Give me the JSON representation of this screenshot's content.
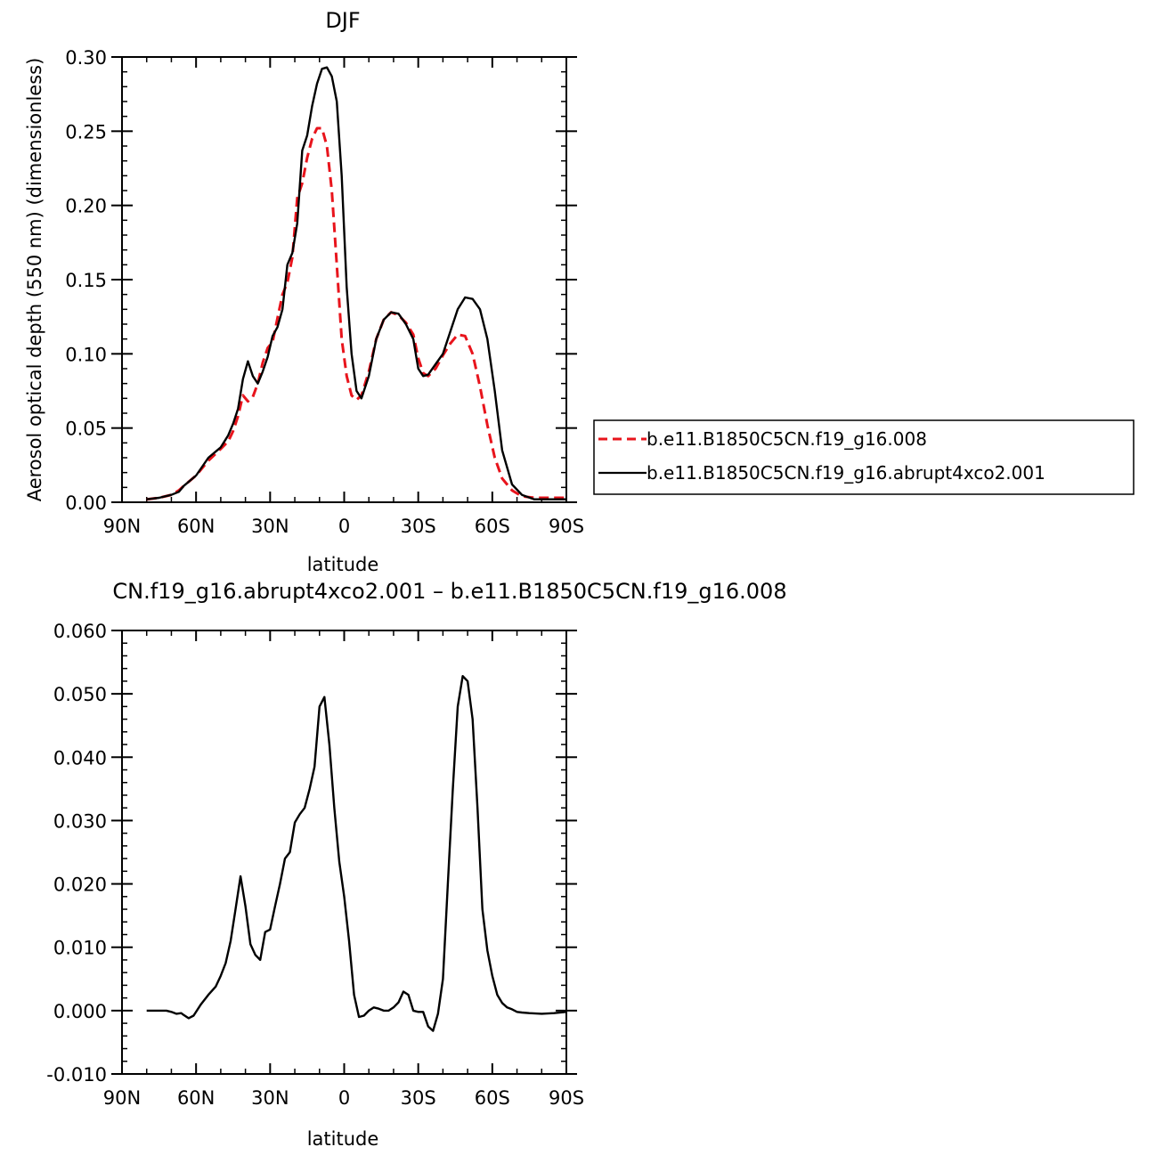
{
  "chart_data": [
    {
      "type": "line",
      "title": "DJF",
      "xlabel": "latitude",
      "ylabel": "Aerosol optical depth (550 nm) (dimensionless)",
      "xlim": [
        90,
        -90
      ],
      "ylim": [
        0,
        0.3
      ],
      "x_ticks": [
        90,
        60,
        30,
        0,
        -30,
        -60,
        -90
      ],
      "x_tick_labels": [
        "90N",
        "60N",
        "30N",
        "0",
        "30S",
        "60S",
        "90S"
      ],
      "y_ticks": [
        0,
        0.05,
        0.1,
        0.15,
        0.2,
        0.25,
        0.3
      ],
      "y_tick_labels": [
        "0.00",
        "0.05",
        "0.10",
        "0.15",
        "0.20",
        "0.25",
        "0.30"
      ],
      "legend_position": "right",
      "series": [
        {
          "name": "b.e11.B1850C5CN.f19_g16.008",
          "color": "#e8141c",
          "style": "dashed",
          "x": [
            80,
            75,
            70,
            67,
            65,
            60,
            55,
            50,
            47,
            45,
            43,
            41,
            39,
            37,
            35,
            33,
            31,
            29,
            27,
            25,
            23,
            21,
            19,
            17,
            15,
            13,
            11,
            9,
            7,
            5,
            3,
            1,
            -1,
            -3,
            -5,
            -7,
            -10,
            -13,
            -16,
            -19,
            -22,
            -25,
            -28,
            -30,
            -32,
            -34,
            -37,
            -40,
            -43,
            -46,
            -49,
            -52,
            -55,
            -58,
            -61,
            -64,
            -68,
            -72,
            -77,
            -82,
            -86,
            -90
          ],
          "y": [
            0.002,
            0.003,
            0.005,
            0.008,
            0.011,
            0.018,
            0.028,
            0.036,
            0.041,
            0.048,
            0.058,
            0.072,
            0.068,
            0.071,
            0.08,
            0.094,
            0.104,
            0.108,
            0.124,
            0.14,
            0.148,
            0.165,
            0.205,
            0.215,
            0.232,
            0.245,
            0.252,
            0.252,
            0.24,
            0.21,
            0.16,
            0.11,
            0.085,
            0.072,
            0.069,
            0.072,
            0.088,
            0.11,
            0.123,
            0.128,
            0.126,
            0.121,
            0.113,
            0.097,
            0.087,
            0.085,
            0.09,
            0.099,
            0.107,
            0.113,
            0.112,
            0.1,
            0.078,
            0.052,
            0.03,
            0.016,
            0.008,
            0.004,
            0.003,
            0.003,
            0.003,
            0.003
          ]
        },
        {
          "name": "b.e11.B1850C5CN.f19_g16.abrupt4xco2.001",
          "color": "#000000",
          "style": "solid",
          "x": [
            80,
            75,
            70,
            67,
            65,
            60,
            55,
            50,
            47,
            45,
            43,
            41,
            39,
            37,
            35,
            33,
            31,
            29,
            27,
            25,
            23,
            21,
            19,
            17,
            15,
            13,
            11,
            9,
            7,
            5,
            3,
            1,
            -1,
            -3,
            -5,
            -7,
            -10,
            -13,
            -16,
            -19,
            -22,
            -25,
            -28,
            -30,
            -32,
            -34,
            -37,
            -40,
            -43,
            -46,
            -49,
            -52,
            -55,
            -58,
            -61,
            -64,
            -68,
            -72,
            -77,
            -82,
            -86,
            -90
          ],
          "y": [
            0.002,
            0.003,
            0.005,
            0.007,
            0.011,
            0.018,
            0.03,
            0.037,
            0.045,
            0.053,
            0.063,
            0.083,
            0.095,
            0.085,
            0.08,
            0.088,
            0.098,
            0.112,
            0.118,
            0.13,
            0.16,
            0.168,
            0.188,
            0.237,
            0.247,
            0.267,
            0.282,
            0.292,
            0.293,
            0.287,
            0.27,
            0.22,
            0.145,
            0.1,
            0.075,
            0.07,
            0.085,
            0.11,
            0.123,
            0.128,
            0.127,
            0.12,
            0.11,
            0.09,
            0.085,
            0.086,
            0.093,
            0.1,
            0.115,
            0.13,
            0.138,
            0.137,
            0.13,
            0.11,
            0.075,
            0.035,
            0.012,
            0.005,
            0.002,
            0.002,
            0.002,
            0.002
          ]
        }
      ]
    },
    {
      "type": "line",
      "title": "CN.f19_g16.abrupt4xco2.001 – b.e11.B1850C5CN.f19_g16.008",
      "xlabel": "latitude",
      "ylabel": "",
      "xlim": [
        90,
        -90
      ],
      "ylim": [
        -0.01,
        0.06
      ],
      "x_ticks": [
        90,
        60,
        30,
        0,
        -30,
        -60,
        -90
      ],
      "x_tick_labels": [
        "90N",
        "60N",
        "30N",
        "0",
        "30S",
        "60S",
        "90S"
      ],
      "y_ticks": [
        -0.01,
        0,
        0.01,
        0.02,
        0.03,
        0.04,
        0.05,
        0.06
      ],
      "y_tick_labels": [
        "-0.010",
        "0.000",
        "0.010",
        "0.020",
        "0.030",
        "0.040",
        "0.050",
        "0.060"
      ],
      "series": [
        {
          "color": "#000000",
          "style": "solid",
          "x": [
            80,
            75,
            72,
            70,
            68,
            66,
            65,
            63,
            61,
            58,
            55,
            52,
            50,
            48,
            46,
            44,
            42,
            40,
            38,
            36,
            34,
            32,
            30,
            28,
            26,
            24,
            22,
            20,
            18,
            16,
            14,
            12,
            10,
            8,
            6,
            4,
            2,
            0,
            -2,
            -4,
            -6,
            -8,
            -10,
            -12,
            -14,
            -16,
            -18,
            -20,
            -22,
            -24,
            -26,
            -28,
            -30,
            -32,
            -34,
            -36,
            -38,
            -40,
            -42,
            -44,
            -46,
            -48,
            -50,
            -52,
            -54,
            -56,
            -58,
            -60,
            -62,
            -64,
            -66,
            -68,
            -70,
            -72,
            -75,
            -80,
            -85,
            -90
          ],
          "y": [
            0.0,
            0.0,
            0.0,
            -0.0002,
            -0.0005,
            -0.0004,
            -0.0007,
            -0.0012,
            -0.0008,
            0.001,
            0.0025,
            0.0038,
            0.0055,
            0.0075,
            0.011,
            0.016,
            0.0212,
            0.0165,
            0.0105,
            0.0088,
            0.008,
            0.0124,
            0.0128,
            0.0165,
            0.02,
            0.024,
            0.025,
            0.0297,
            0.031,
            0.032,
            0.035,
            0.0385,
            0.048,
            0.0495,
            0.042,
            0.032,
            0.0235,
            0.018,
            0.011,
            0.0025,
            -0.001,
            -0.0008,
            0.0,
            0.0005,
            0.0003,
            0.0,
            0.0,
            0.0005,
            0.0013,
            0.003,
            0.0025,
            0.0,
            -0.0002,
            -0.0002,
            -0.0025,
            -0.0032,
            -0.0005,
            0.005,
            0.02,
            0.035,
            0.048,
            0.0528,
            0.052,
            0.046,
            0.032,
            0.016,
            0.0095,
            0.0055,
            0.0025,
            0.0012,
            0.0005,
            0.0002,
            -0.0002,
            -0.0003,
            -0.0004,
            -0.0005,
            -0.0004,
            -0.0002
          ]
        }
      ]
    }
  ]
}
